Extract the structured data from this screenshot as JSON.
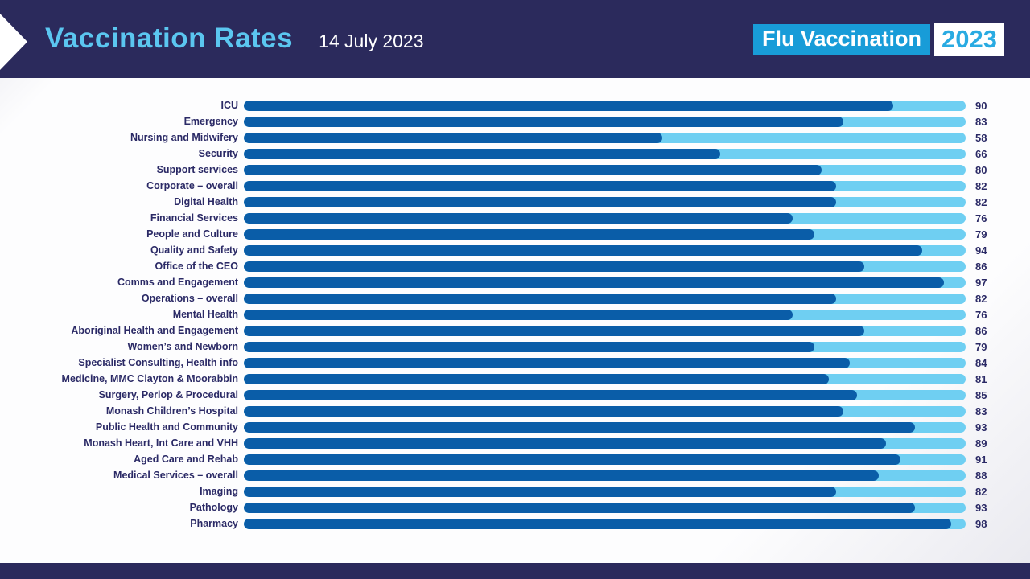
{
  "header": {
    "title": "Vaccination Rates",
    "date": "14 July 2023",
    "logo_primary": "Flu Vaccination",
    "logo_year": "2023"
  },
  "colors": {
    "header_bg": "#2b2a5c",
    "footer_bg": "#2b2a5c",
    "title_color": "#5bc6f0",
    "date_color": "#ffffff",
    "bar_fill": "#0a5da8",
    "bar_track": "#6fcff2",
    "label_color": "#2b2a66",
    "logo_bg": "#189cd8",
    "logo_text_color": "#ffffff",
    "logo_year_bg": "#ffffff",
    "logo_year_color": "#29abe2"
  },
  "chart_data": {
    "type": "bar",
    "orientation": "horizontal",
    "title": "Vaccination Rates",
    "subtitle": "14 July 2023",
    "xlabel": "",
    "ylabel": "",
    "xlim": [
      0,
      100
    ],
    "grid": false,
    "legend": "none",
    "value_labels": "right-of-bar",
    "categories": [
      "ICU",
      "Emergency",
      "Nursing and Midwifery",
      "Security",
      "Support services",
      "Corporate – overall",
      "Digital Health",
      "Financial Services",
      "People and Culture",
      "Quality and Safety",
      "Office of the CEO",
      "Comms and Engagement",
      "Operations – overall",
      "Mental Health",
      "Aboriginal Health and Engagement",
      "Women’s and Newborn",
      "Specialist Consulting, Health info",
      "Medicine, MMC Clayton & Moorabbin",
      "Surgery, Periop & Procedural",
      "Monash Children’s Hospital",
      "Public Health and Community",
      "Monash Heart, Int Care and VHH",
      "Aged Care and Rehab",
      "Medical Services – overall",
      "Imaging",
      "Pathology",
      "Pharmacy"
    ],
    "values": [
      90,
      83,
      58,
      66,
      80,
      82,
      82,
      76,
      79,
      94,
      86,
      97,
      82,
      76,
      86,
      79,
      84,
      81,
      85,
      83,
      93,
      89,
      91,
      88,
      82,
      93,
      98
    ]
  }
}
